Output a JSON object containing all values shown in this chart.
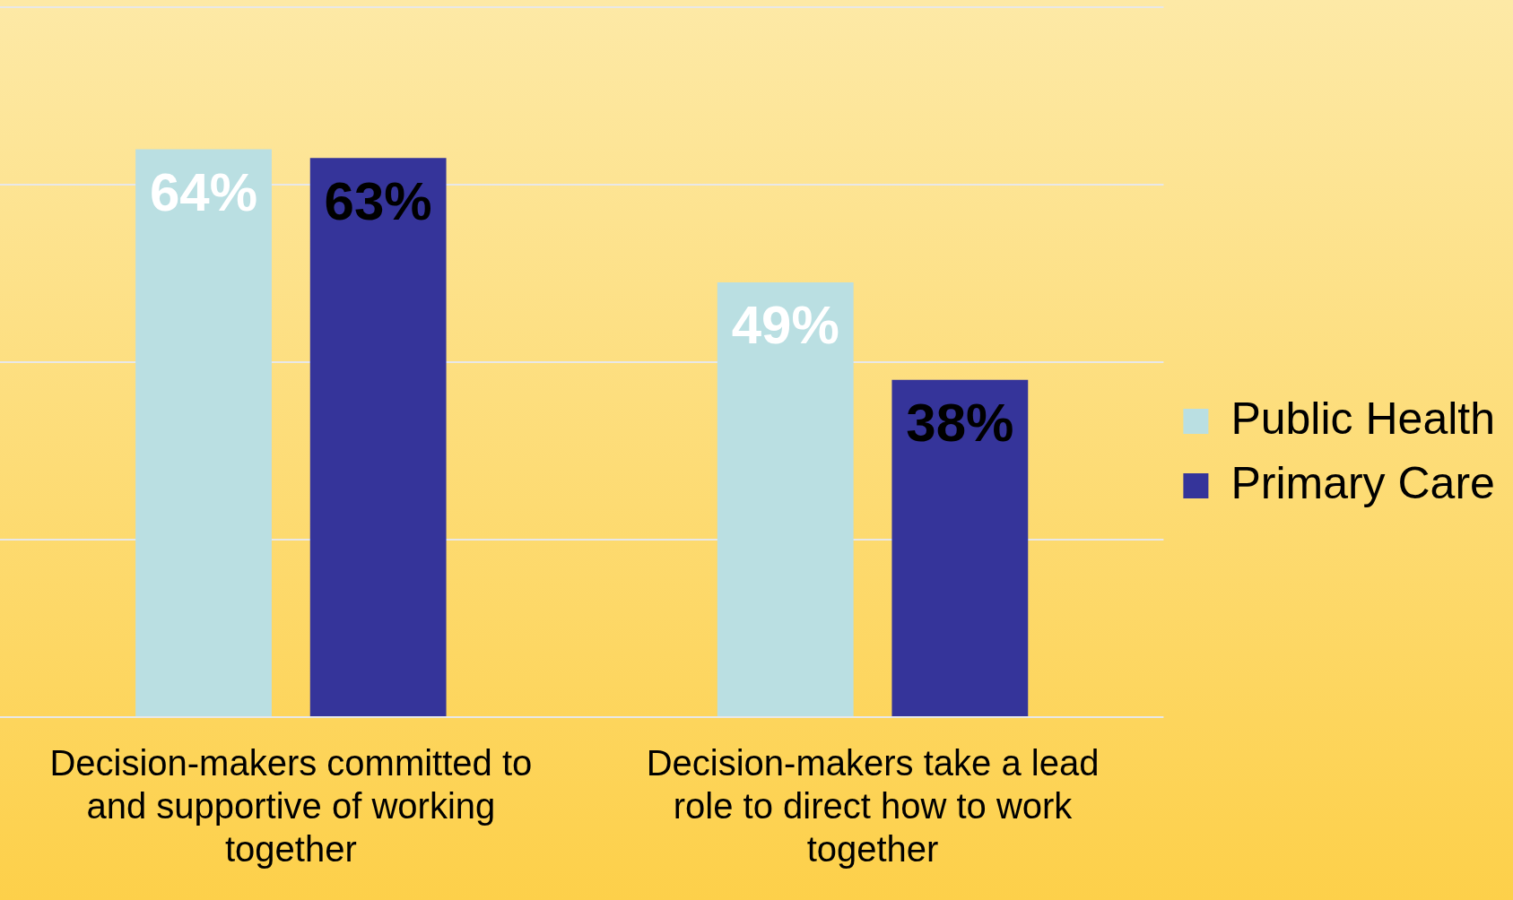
{
  "chart_data": {
    "type": "bar",
    "categories": [
      "Decision-makers committed to and supportive of working together",
      "Decision-makers take a lead role to direct how to work together"
    ],
    "series": [
      {
        "name": "Public Health",
        "color": "#badfe2",
        "values": [
          64,
          49
        ],
        "value_labels": [
          "64%",
          "49%"
        ]
      },
      {
        "name": "Primary Care",
        "color": "#35349a",
        "values": [
          63,
          38
        ],
        "value_labels": [
          "63%",
          "38%"
        ]
      }
    ],
    "grid": "y",
    "tick_labels": "x",
    "legend": "right"
  }
}
